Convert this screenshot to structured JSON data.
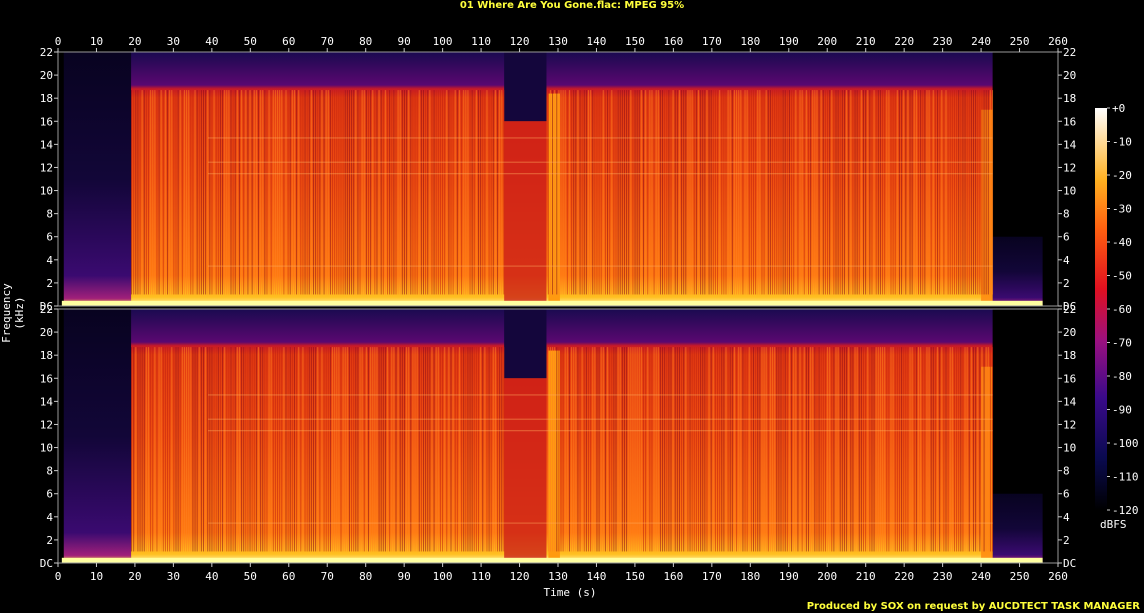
{
  "title": "01 Where Are You Gone.flac: MPEG 95%",
  "footer": "Produced by SOX on request by AUCDTECT TASK MANAGER",
  "chart_data": {
    "type": "heatmap",
    "subtype": "spectrogram",
    "channels": 2,
    "xlabel": "Time (s)",
    "ylabel": "Frequency (kHz)",
    "xlim": [
      0,
      260
    ],
    "ylim": [
      0,
      22
    ],
    "x_ticks": [
      0,
      10,
      20,
      30,
      40,
      50,
      60,
      70,
      80,
      90,
      100,
      110,
      120,
      130,
      140,
      150,
      160,
      170,
      180,
      190,
      200,
      210,
      220,
      230,
      240,
      250,
      260
    ],
    "y_ticks": [
      "DC",
      "2",
      "4",
      "6",
      "8",
      "10",
      "12",
      "14",
      "16",
      "18",
      "20",
      "22"
    ],
    "colorbar": {
      "label": "dBFS",
      "range": [
        -120,
        0
      ],
      "ticks": [
        "+0",
        "-10",
        "-20",
        "-30",
        "-40",
        "-50",
        "-60",
        "-70",
        "-80",
        "-90",
        "-100",
        "-110",
        "-120"
      ]
    },
    "features": {
      "audio_start_s": 19,
      "audio_end_s": 243,
      "lowpass_cutoff_khz": 19,
      "dropout_segment_s": [
        116,
        127
      ],
      "bright_band_s": [
        127.5,
        130.5
      ],
      "bright_band_end_s": [
        240,
        243
      ],
      "fade_tail_s": [
        243,
        256
      ],
      "level_change_s": 180
    },
    "colors": {
      "background": "#000000",
      "quiet": "#0a0530",
      "mid": "#b01010",
      "loud": "#ffa000",
      "peak": "#ffffa0",
      "text": "#ffffff",
      "title": "#ffff3c"
    }
  }
}
